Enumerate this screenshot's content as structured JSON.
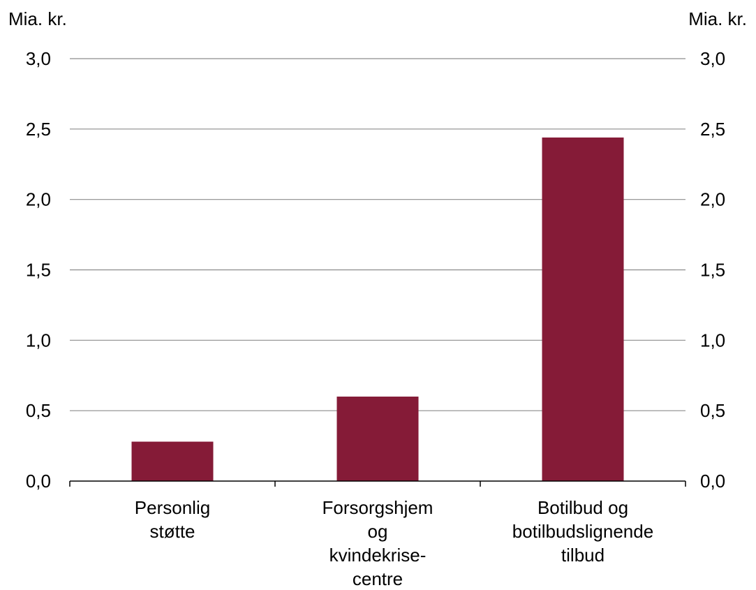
{
  "chart_data": {
    "type": "bar",
    "title": "",
    "left_axis_unit": "Mia. kr.",
    "right_axis_unit": "Mia. kr.",
    "categories": [
      [
        "Personlig",
        "støtte"
      ],
      [
        "Forsorgshjem",
        "og",
        "kvindekrise-",
        "centre"
      ],
      [
        "Botilbud og",
        "botilbudslignende",
        "tilbud"
      ]
    ],
    "values": [
      0.28,
      0.6,
      2.44
    ],
    "ylim": [
      0,
      3
    ],
    "yticks": [
      "0,0",
      "0,5",
      "1,0",
      "1,5",
      "2,0",
      "2,5",
      "3,0"
    ],
    "ytick_values": [
      0,
      0.5,
      1,
      1.5,
      2,
      2.5,
      3
    ],
    "grid": true,
    "legend": "none",
    "bar_color": "#851B37",
    "grid_color": "#8C8C8C"
  }
}
